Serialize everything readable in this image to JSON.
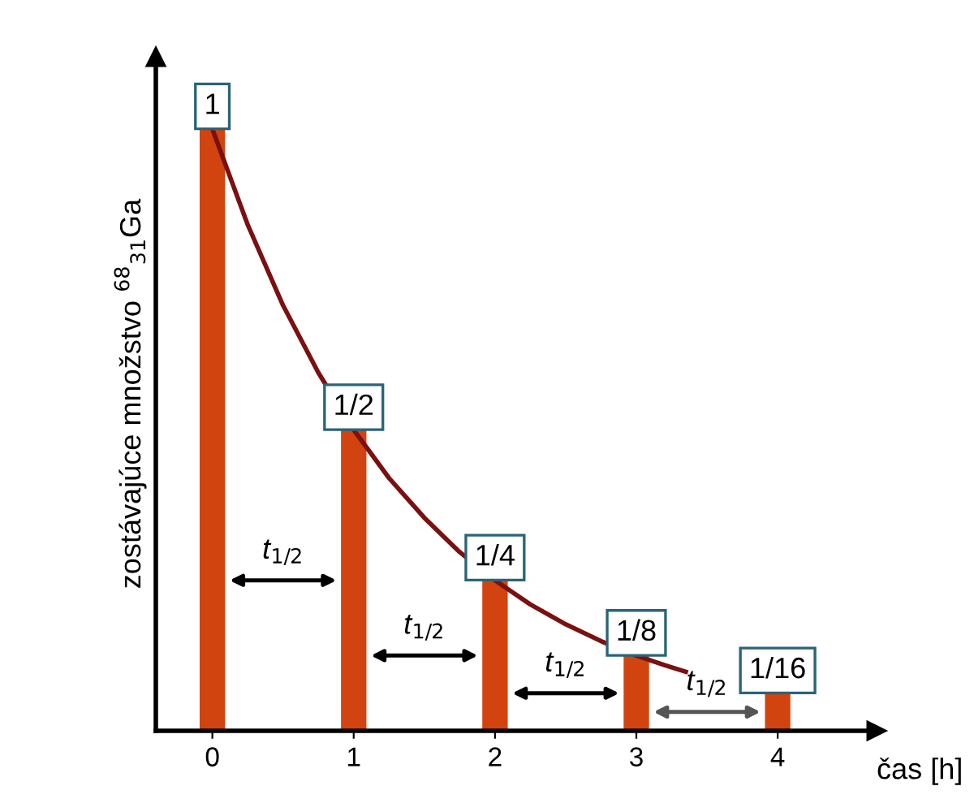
{
  "chart_data": {
    "type": "bar",
    "tick_labels": "x",
    "xlabel": "čas [h]",
    "ylabel": "zostávajúce množstvo $^{68}$$_{31}$Ga",
    "x": [
      0,
      1,
      2,
      3,
      4
    ],
    "xlim": [
      -0.4,
      4.7
    ],
    "xticks": [
      0,
      1,
      2,
      3,
      4
    ],
    "series": [
      {
        "color": "#d2440f",
        "values": [
          1,
          0.5,
          0.25,
          0.125,
          0.0625
        ],
        "value_labels": [
          "1",
          "1/2",
          "1/4",
          "1/8",
          "1/16"
        ]
      },
      {
        "type": "line",
        "color": "#7a1010",
        "x": [
          0,
          0.25,
          0.5,
          0.75,
          1,
          1.25,
          1.5,
          1.75,
          2,
          2.25,
          2.5,
          2.75,
          3,
          3.2,
          3.35
        ],
        "values": [
          1,
          0.841,
          0.707,
          0.595,
          0.5,
          0.42,
          0.354,
          0.297,
          0.25,
          0.21,
          0.177,
          0.149,
          0.125,
          0.109,
          0.098
        ]
      }
    ],
    "annotations": [
      "t$_{1/2}$",
      "t$_{1/2}$",
      "t$_{1/2}$",
      "t$_{1/2}$"
    ],
    "grid": false,
    "legend": false
  }
}
